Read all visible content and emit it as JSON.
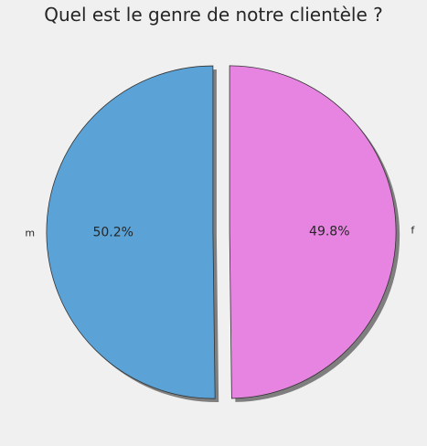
{
  "chart_data": {
    "type": "pie",
    "title": "Quel est le genre de notre clientèle ?",
    "labels": [
      "m",
      "f"
    ],
    "values": [
      50.2,
      49.8
    ],
    "percent_labels": [
      "50.2%",
      "49.8%"
    ],
    "colors": [
      "#5ba3d6",
      "#e784e1"
    ],
    "explode": [
      0.05,
      0.05
    ],
    "shadow": true,
    "start_angle_deg": 90,
    "direction": "counterclockwise",
    "edge_color": "#333333"
  }
}
